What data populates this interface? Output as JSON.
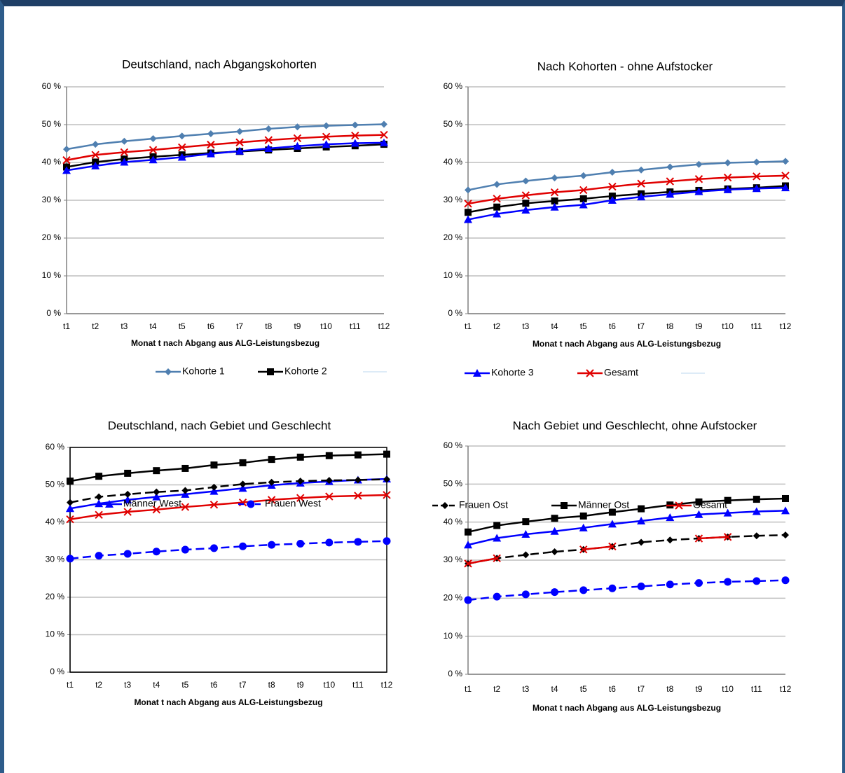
{
  "chart_data": [
    {
      "type": "line",
      "title": "Deutschland, nach Abgangskohorten",
      "x_label": "Monat t nach Abgang aus ALG-Leistungsbezug",
      "categories": [
        "t1",
        "t2",
        "t3",
        "t4",
        "t5",
        "t6",
        "t7",
        "t8",
        "t9",
        "t10",
        "t11",
        "t12"
      ],
      "ylim": [
        0,
        60
      ],
      "yticks": [
        {
          "value": 0,
          "label": "0 %"
        },
        {
          "value": 10,
          "label": "10 %"
        },
        {
          "value": 20,
          "label": "20 %"
        },
        {
          "value": 30,
          "label": "30 %"
        },
        {
          "value": 40,
          "label": "40 %"
        },
        {
          "value": 50,
          "label": "50 %"
        },
        {
          "value": 60,
          "label": "60 %"
        }
      ],
      "grid": true,
      "frame": false,
      "series": [
        {
          "name": "Kohorte 1",
          "color": "#4F7FB0",
          "marker": "diamond",
          "dashed": false,
          "values": [
            43.5,
            44.8,
            45.6,
            46.3,
            47.0,
            47.6,
            48.2,
            48.9,
            49.4,
            49.7,
            49.9,
            50.1
          ]
        },
        {
          "name": "Kohorte 2",
          "color": "#000000",
          "marker": "square",
          "dashed": false,
          "values": [
            38.8,
            40.1,
            40.9,
            41.5,
            42.0,
            42.5,
            42.9,
            43.3,
            43.7,
            44.1,
            44.4,
            44.8
          ]
        },
        {
          "name": "Kohorte 3",
          "color": "#0000FF",
          "marker": "triangle",
          "dashed": false,
          "values": [
            37.9,
            39.1,
            40.1,
            40.7,
            41.4,
            42.3,
            43.0,
            43.7,
            44.3,
            44.8,
            45.1,
            45.2
          ]
        },
        {
          "name": "Gesamt",
          "color": "#E00000",
          "marker": "x",
          "dashed": false,
          "values": [
            40.6,
            42.0,
            42.7,
            43.3,
            44.0,
            44.7,
            45.3,
            45.9,
            46.4,
            46.8,
            47.1,
            47.3
          ]
        }
      ]
    },
    {
      "type": "line",
      "title": "Nach Kohorten - ohne Aufstocker",
      "x_label": "Monat t nach Abgang aus ALG-Leistungsbezug",
      "categories": [
        "t1",
        "t2",
        "t3",
        "t4",
        "t5",
        "t6",
        "t7",
        "t8",
        "t9",
        "t10",
        "t11",
        "t12"
      ],
      "ylim": [
        0,
        60
      ],
      "yticks": [
        {
          "value": 0,
          "label": "0 %"
        },
        {
          "value": 10,
          "label": "10 %"
        },
        {
          "value": 20,
          "label": "20 %"
        },
        {
          "value": 30,
          "label": "30 %"
        },
        {
          "value": 40,
          "label": "40 %"
        },
        {
          "value": 50,
          "label": "50 %"
        },
        {
          "value": 60,
          "label": "60 %"
        }
      ],
      "grid": true,
      "frame": false,
      "series": [
        {
          "color": "#4F7FB0",
          "marker": "diamond",
          "dashed": false,
          "values": [
            32.7,
            34.2,
            35.1,
            35.9,
            36.5,
            37.4,
            38.0,
            38.8,
            39.5,
            39.9,
            40.1,
            40.3
          ]
        },
        {
          "color": "#000000",
          "marker": "square",
          "dashed": false,
          "values": [
            26.8,
            28.2,
            29.2,
            29.8,
            30.4,
            31.1,
            31.7,
            32.2,
            32.6,
            33.0,
            33.3,
            33.8
          ]
        },
        {
          "color": "#0000FF",
          "marker": "triangle",
          "dashed": false,
          "values": [
            24.9,
            26.4,
            27.4,
            28.2,
            28.8,
            30.0,
            30.9,
            31.6,
            32.3,
            32.8,
            33.1,
            33.3
          ]
        },
        {
          "color": "#E00000",
          "marker": "x",
          "dashed": false,
          "values": [
            29.1,
            30.4,
            31.3,
            32.1,
            32.7,
            33.6,
            34.4,
            35.0,
            35.6,
            36.0,
            36.3,
            36.5
          ]
        }
      ]
    },
    {
      "type": "line",
      "title": "Deutschland, nach Gebiet und Geschlecht",
      "x_label": "Monat t nach Abgang aus ALG-Leistungsbezug",
      "categories": [
        "t1",
        "t2",
        "t3",
        "t4",
        "t5",
        "t6",
        "t7",
        "t8",
        "t9",
        "t10",
        "t11",
        "t12"
      ],
      "ylim": [
        0,
        60
      ],
      "yticks": [
        {
          "value": 0,
          "label": "0 %"
        },
        {
          "value": 10,
          "label": "10 %"
        },
        {
          "value": 20,
          "label": "20 %"
        },
        {
          "value": 30,
          "label": "30 %"
        },
        {
          "value": 40,
          "label": "40 %"
        },
        {
          "value": 50,
          "label": "50 %"
        },
        {
          "value": 60,
          "label": "60 %"
        }
      ],
      "grid": true,
      "frame": true,
      "series": [
        {
          "name": "Männer West",
          "color": "#0000FF",
          "marker": "triangle",
          "dashed": false,
          "values": [
            43.7,
            45.0,
            46.0,
            46.8,
            47.5,
            48.3,
            49.1,
            49.9,
            50.5,
            50.9,
            51.3,
            51.6
          ]
        },
        {
          "name": "Frauen West",
          "color": "#0000FF",
          "marker": "circle",
          "dashed": true,
          "values": [
            30.3,
            31.1,
            31.6,
            32.2,
            32.7,
            33.1,
            33.6,
            34.0,
            34.3,
            34.6,
            34.8,
            35.0
          ]
        },
        {
          "name": "Frauen Ost",
          "color": "#000000",
          "marker": "diamond",
          "dashed": true,
          "values": [
            45.3,
            46.8,
            47.5,
            48.1,
            48.5,
            49.4,
            50.2,
            50.7,
            51.0,
            51.2,
            51.3,
            51.5
          ]
        },
        {
          "name": "Männer Ost",
          "color": "#000000",
          "marker": "square",
          "dashed": false,
          "values": [
            51.0,
            52.3,
            53.1,
            53.8,
            54.4,
            55.3,
            55.9,
            56.8,
            57.4,
            57.8,
            58.0,
            58.2
          ]
        },
        {
          "name": "Gesamt",
          "color": "#E00000",
          "marker": "x",
          "dashed": false,
          "values": [
            40.8,
            42.0,
            42.8,
            43.4,
            44.1,
            44.7,
            45.3,
            46.0,
            46.5,
            46.9,
            47.1,
            47.3
          ]
        }
      ]
    },
    {
      "type": "line",
      "title": "Nach Gebiet und Geschlecht, ohne Aufstocker",
      "x_label": "Monat t nach Abgang aus ALG-Leistungsbezug",
      "categories": [
        "t1",
        "t2",
        "t3",
        "t4",
        "t5",
        "t6",
        "t7",
        "t8",
        "t9",
        "t10",
        "t11",
        "t12"
      ],
      "ylim": [
        0,
        60
      ],
      "yticks": [
        {
          "value": 0,
          "label": "0 %"
        },
        {
          "value": 10,
          "label": "10 %"
        },
        {
          "value": 20,
          "label": "20 %"
        },
        {
          "value": 30,
          "label": "30 %"
        },
        {
          "value": 40,
          "label": "40 %"
        },
        {
          "value": 50,
          "label": "50 %"
        },
        {
          "value": 60,
          "label": "60 %"
        }
      ],
      "grid": true,
      "frame": false,
      "series": [
        {
          "color": "#0000FF",
          "marker": "triangle",
          "dashed": false,
          "values": [
            34.0,
            35.8,
            36.8,
            37.6,
            38.5,
            39.5,
            40.3,
            41.2,
            42.0,
            42.4,
            42.8,
            43.0
          ]
        },
        {
          "color": "#0000FF",
          "marker": "circle",
          "dashed": true,
          "values": [
            19.5,
            20.4,
            21.0,
            21.6,
            22.1,
            22.6,
            23.1,
            23.6,
            24.0,
            24.3,
            24.5,
            24.7
          ]
        },
        {
          "color": "#000000",
          "marker": "diamond",
          "dashed": true,
          "values": [
            29.1,
            30.5,
            31.4,
            32.2,
            32.8,
            33.6,
            34.7,
            35.3,
            35.7,
            36.1,
            36.4,
            36.6
          ]
        },
        {
          "color": "#000000",
          "marker": "square",
          "dashed": false,
          "values": [
            37.4,
            39.1,
            40.1,
            41.0,
            41.6,
            42.6,
            43.5,
            44.5,
            45.3,
            45.7,
            46.0,
            46.2
          ]
        },
        {
          "color": "#E00000",
          "marker": "x",
          "dashed": false,
          "values": [
            29.1,
            30.5,
            null,
            null,
            32.8,
            33.6,
            null,
            null,
            35.7,
            36.1,
            null,
            null
          ]
        }
      ]
    }
  ]
}
